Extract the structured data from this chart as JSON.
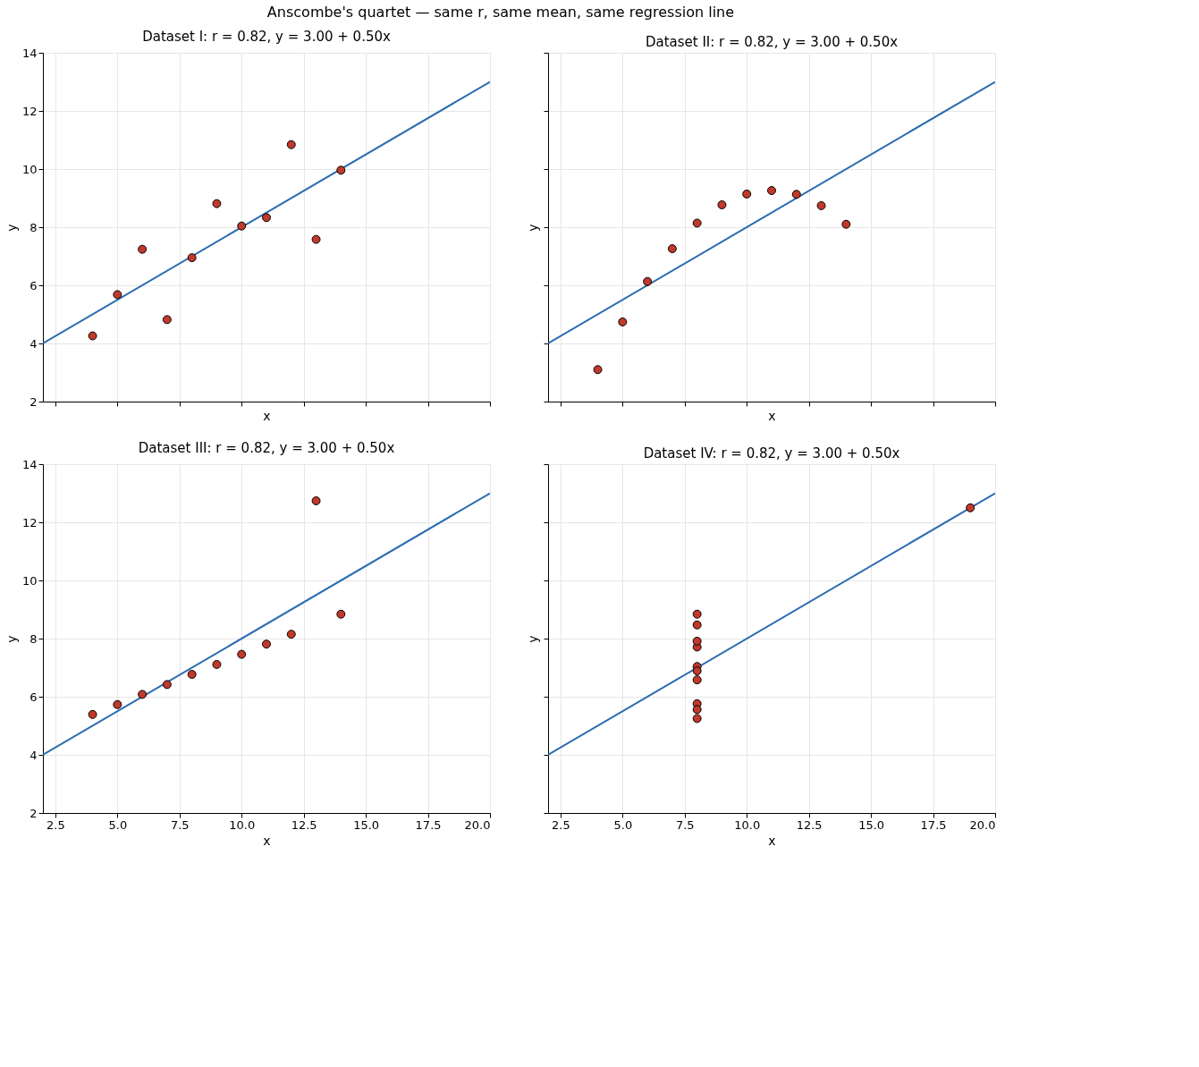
{
  "chart_data": [
    {
      "type": "other",
      "title": "Anscombe's quartet — same r, same mean, same regression line"
    },
    {
      "type": "scatter",
      "title": "Dataset I:  r = 0.82,  y = 3.00 + 0.50x",
      "xlabel": "x",
      "ylabel": "y",
      "xlim": [
        2,
        20
      ],
      "ylim": [
        2,
        14
      ],
      "xticks": [
        {
          "value": 2.5,
          "label": null
        },
        {
          "value": 5,
          "label": null
        },
        {
          "value": 7.5,
          "label": null
        },
        {
          "value": 10,
          "label": null
        },
        {
          "value": 12.5,
          "label": null
        },
        {
          "value": 15,
          "label": null
        },
        {
          "value": 17.5,
          "label": null
        },
        {
          "value": 20,
          "label": null
        }
      ],
      "yticks": [
        2,
        4,
        6,
        8,
        10,
        12,
        14
      ],
      "grid": true,
      "tick_labels": "y",
      "series": [
        {
          "type": "scatter",
          "marker": "circle",
          "color": "#c0392b",
          "x": [
            10,
            8,
            13,
            9,
            11,
            14,
            6,
            4,
            12,
            7,
            5
          ],
          "values": [
            8.04,
            6.95,
            7.58,
            8.81,
            8.33,
            9.96,
            7.24,
            4.26,
            10.84,
            4.82,
            5.68
          ]
        },
        {
          "type": "line",
          "color": "#2b6cb0",
          "x": [
            2,
            20
          ],
          "values": [
            4,
            13
          ]
        }
      ]
    },
    {
      "type": "scatter",
      "title": "Dataset II:  r = 0.82,  y = 3.00 + 0.50x",
      "xlabel": "x",
      "ylabel": "y",
      "xlim": [
        2,
        20
      ],
      "ylim": [
        2,
        14
      ],
      "xticks": [
        {
          "value": 2.5,
          "label": null
        },
        {
          "value": 5,
          "label": null
        },
        {
          "value": 7.5,
          "label": null
        },
        {
          "value": 10,
          "label": null
        },
        {
          "value": 12.5,
          "label": null
        },
        {
          "value": 15,
          "label": null
        },
        {
          "value": 17.5,
          "label": null
        },
        {
          "value": 20,
          "label": null
        }
      ],
      "yticks": [
        {
          "value": 2,
          "label": null
        },
        {
          "value": 4,
          "label": null
        },
        {
          "value": 6,
          "label": null
        },
        {
          "value": 8,
          "label": null
        },
        {
          "value": 10,
          "label": null
        },
        {
          "value": 12,
          "label": null
        },
        {
          "value": 14,
          "label": null
        }
      ],
      "grid": true,
      "tick_labels": false,
      "series": [
        {
          "type": "scatter",
          "marker": "circle",
          "color": "#c0392b",
          "x": [
            10,
            8,
            13,
            9,
            11,
            14,
            6,
            4,
            12,
            7,
            5
          ],
          "values": [
            9.14,
            8.14,
            8.74,
            8.77,
            9.26,
            8.1,
            6.13,
            3.1,
            9.13,
            7.26,
            4.74
          ]
        },
        {
          "type": "line",
          "color": "#2b6cb0",
          "x": [
            2,
            20
          ],
          "values": [
            4,
            13
          ]
        }
      ]
    },
    {
      "type": "scatter",
      "title": "Dataset III:  r = 0.82,  y = 3.00 + 0.50x",
      "xlabel": "x",
      "ylabel": "y",
      "xlim": [
        2,
        20
      ],
      "ylim": [
        2,
        14
      ],
      "xticks": [
        {
          "value": 2.5,
          "label": "2.5"
        },
        {
          "value": 5,
          "label": "5.0"
        },
        {
          "value": 7.5,
          "label": "7.5"
        },
        {
          "value": 10,
          "label": "10.0"
        },
        {
          "value": 12.5,
          "label": "12.5"
        },
        {
          "value": 15,
          "label": "15.0"
        },
        {
          "value": 17.5,
          "label": "17.5"
        },
        {
          "value": 20,
          "label": "20.0"
        }
      ],
      "yticks": [
        2,
        4,
        6,
        8,
        10,
        12,
        14
      ],
      "grid": true,
      "series": [
        {
          "type": "scatter",
          "marker": "circle",
          "color": "#c0392b",
          "x": [
            10,
            8,
            13,
            9,
            11,
            14,
            6,
            4,
            12,
            7,
            5
          ],
          "values": [
            7.46,
            6.77,
            12.74,
            7.11,
            7.81,
            8.84,
            6.08,
            5.39,
            8.15,
            6.42,
            5.73
          ]
        },
        {
          "type": "line",
          "color": "#2b6cb0",
          "x": [
            2,
            20
          ],
          "values": [
            4,
            13
          ]
        }
      ]
    },
    {
      "type": "scatter",
      "title": "Dataset IV:  r = 0.82,  y = 3.00 + 0.50x",
      "xlabel": "x",
      "ylabel": "y",
      "xlim": [
        2,
        20
      ],
      "ylim": [
        2,
        14
      ],
      "xticks": [
        {
          "value": 2.5,
          "label": "2.5"
        },
        {
          "value": 5,
          "label": "5.0"
        },
        {
          "value": 7.5,
          "label": "7.5"
        },
        {
          "value": 10,
          "label": "10.0"
        },
        {
          "value": 12.5,
          "label": "12.5"
        },
        {
          "value": 15,
          "label": "15.0"
        },
        {
          "value": 17.5,
          "label": "17.5"
        },
        {
          "value": 20,
          "label": "20.0"
        }
      ],
      "yticks": [
        {
          "value": 2,
          "label": null
        },
        {
          "value": 4,
          "label": null
        },
        {
          "value": 6,
          "label": null
        },
        {
          "value": 8,
          "label": null
        },
        {
          "value": 10,
          "label": null
        },
        {
          "value": 12,
          "label": null
        },
        {
          "value": 14,
          "label": null
        }
      ],
      "grid": true,
      "tick_labels": "x",
      "series": [
        {
          "type": "scatter",
          "marker": "circle",
          "color": "#c0392b",
          "x": [
            8,
            8,
            8,
            8,
            8,
            8,
            8,
            19,
            8,
            8,
            8
          ],
          "values": [
            6.58,
            5.76,
            7.71,
            8.84,
            8.47,
            7.04,
            5.25,
            12.5,
            5.56,
            7.91,
            6.89
          ]
        },
        {
          "type": "line",
          "color": "#2b6cb0",
          "x": [
            2,
            20
          ],
          "values": [
            4,
            13
          ]
        }
      ]
    }
  ]
}
